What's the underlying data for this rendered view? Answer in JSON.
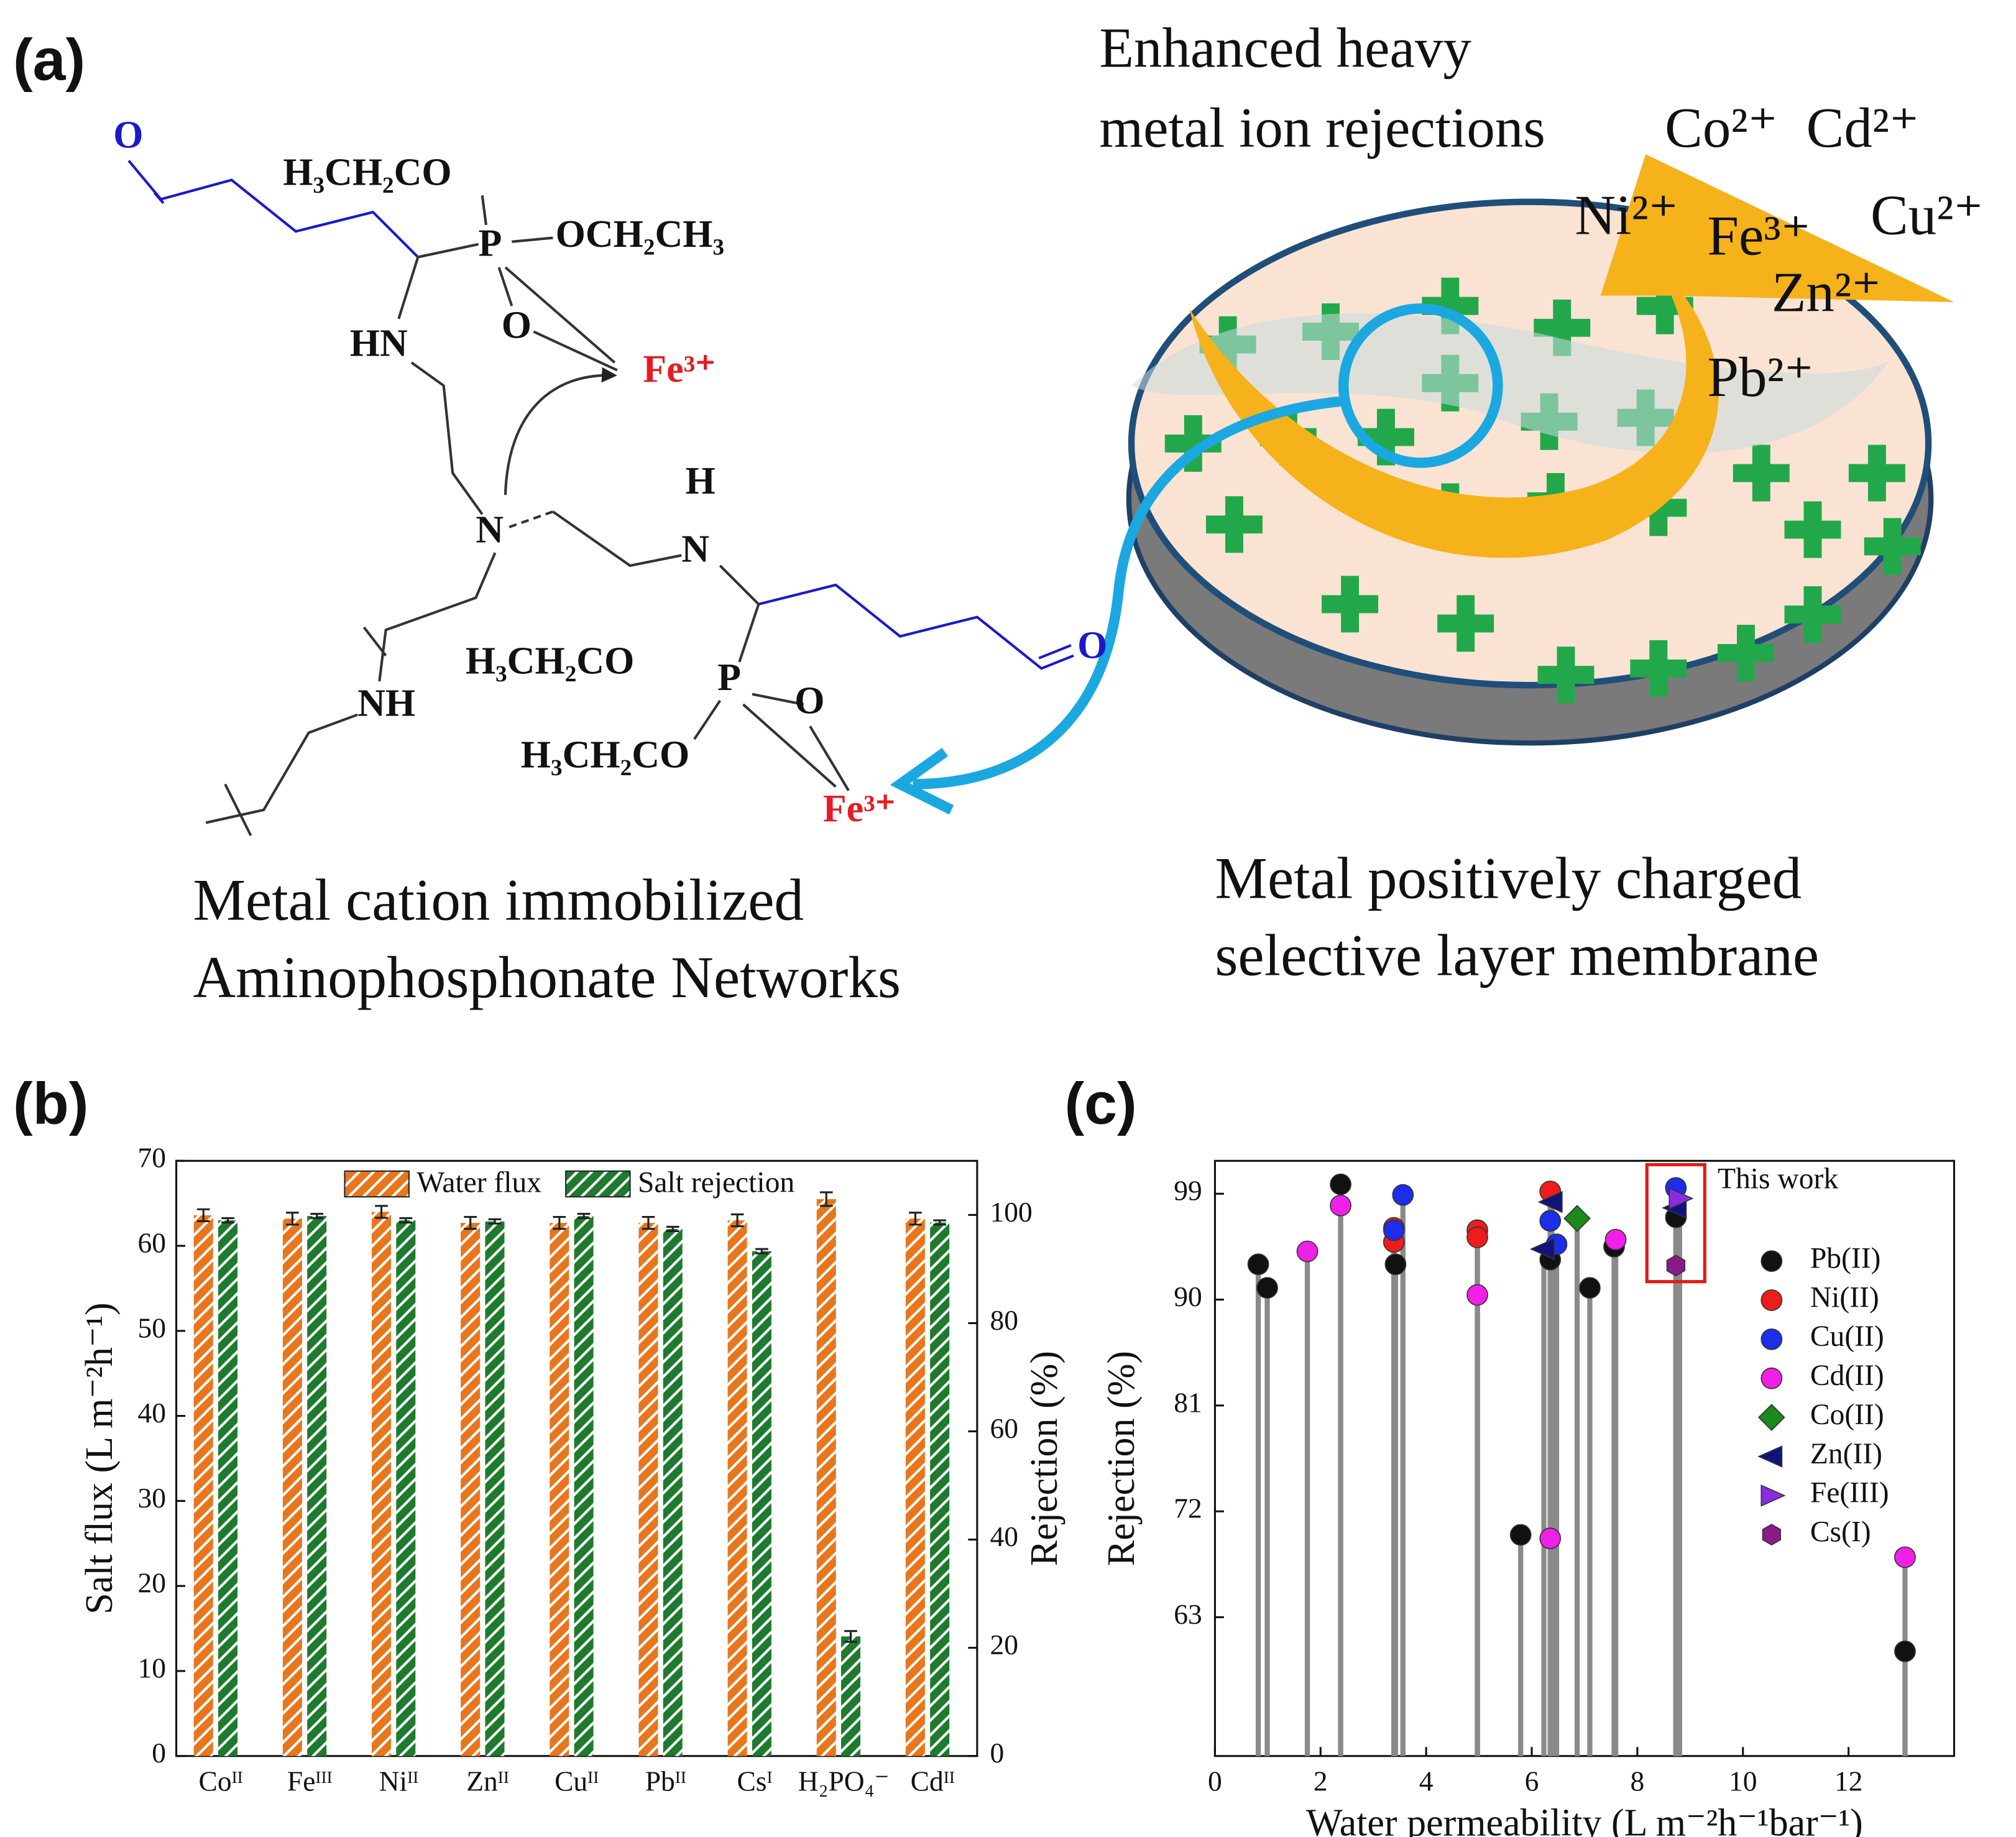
{
  "panel_labels": [
    "(a)",
    "(b)",
    "(c)"
  ],
  "panel_a": {
    "chemistry": [
      "O",
      "H₃CH₂CO",
      "OCH₂CH₃",
      "P",
      "O",
      "HN",
      "Fe³⁺",
      "H",
      "N",
      "N",
      "H₃CH₂CO",
      "P",
      "O",
      "NH",
      "H₃CH₂CO",
      "O",
      "Fe³⁺"
    ],
    "left_caption": [
      "Metal cation immobilized",
      "Aminophosphonate Networks"
    ],
    "right_title": [
      "Enhanced heavy",
      "metal ion rejections"
    ],
    "ions": [
      "Co²⁺",
      "Cd²⁺",
      "Ni²⁺",
      "Fe³⁺",
      "Cu²⁺",
      "Zn²⁺",
      "Pb²⁺"
    ],
    "right_caption": [
      "Metal positively charged",
      "selective layer membrane"
    ]
  },
  "chart_data": [
    {
      "type": "bar",
      "ylabel": "Salt flux (L m⁻²h⁻¹)",
      "y2label": "Rejection (%)",
      "categories": [
        "Coᴵᴵ",
        "Feᴵᴵᴵ",
        "Niᴵᴵ",
        "Znᴵᴵ",
        "Cuᴵᴵ",
        "Pbᴵᴵ",
        "Csᴵ",
        "H₂PO₄⁻",
        "Cdᴵᴵ"
      ],
      "series": [
        {
          "name": "Water flux",
          "color": "#e8761c",
          "values": [
            63.6,
            63.2,
            64.0,
            62.7,
            62.7,
            62.7,
            63.0,
            65.5,
            63.2
          ],
          "errors": [
            0.7,
            0.7,
            0.7,
            0.7,
            0.7,
            0.7,
            0.7,
            0.8,
            0.7
          ]
        },
        {
          "name": "Salt rejection",
          "color": "#1e7a2e",
          "axis": "y2",
          "values": [
            99.0,
            99.8,
            99.0,
            98.8,
            99.8,
            97.4,
            93.3,
            22.1,
            98.6
          ],
          "errors": [
            0.4,
            0.4,
            0.4,
            0.4,
            0.4,
            0.4,
            0.4,
            1.0,
            0.4
          ]
        }
      ],
      "ylim": [
        0,
        70
      ],
      "yticks": [
        0,
        10,
        20,
        30,
        40,
        50,
        60,
        70
      ],
      "y2lim": [
        0,
        110
      ],
      "y2ticks": [
        0,
        20,
        40,
        60,
        80,
        100
      ],
      "legend": "top",
      "hatch": true
    },
    {
      "type": "scatter",
      "xlabel": "Water permeability (L m⁻²h⁻¹bar⁻¹)",
      "ylabel": "Rejection (%)",
      "xlim": [
        0,
        14
      ],
      "xticks": [
        0,
        2,
        4,
        6,
        8,
        10,
        12
      ],
      "ylim": [
        51.2,
        101.8
      ],
      "yticks": [
        63,
        72,
        81,
        90,
        99
      ],
      "stems": true,
      "legend": "right",
      "annotation": "This work",
      "series": [
        {
          "name": "Pb(II)",
          "color": "#111111",
          "marker": "circle",
          "x": [
            0.82,
            0.99,
            2.38,
            3.42,
            5.79,
            6.35,
            7.1,
            7.56,
            8.73,
            13.07
          ],
          "values": [
            93.0,
            91.0,
            99.8,
            93.0,
            70.0,
            93.4,
            91.0,
            94.5,
            97.0,
            60.1
          ]
        },
        {
          "name": "Ni(II)",
          "color": "#ee1c1c",
          "marker": "circle",
          "x": [
            3.39,
            3.39,
            4.97,
            4.97,
            6.35
          ],
          "values": [
            96.1,
            94.9,
            95.9,
            95.3,
            99.2
          ]
        },
        {
          "name": "Cu(II)",
          "color": "#1c2ee8",
          "marker": "circle",
          "x": [
            3.56,
            3.39,
            6.35,
            6.47,
            8.73
          ],
          "values": [
            98.9,
            95.9,
            96.7,
            94.7,
            99.5
          ]
        },
        {
          "name": "Cd(II)",
          "color": "#f020e8",
          "marker": "circle",
          "x": [
            1.75,
            2.38,
            4.97,
            6.35,
            7.59,
            13.07
          ],
          "values": [
            94.1,
            98.0,
            90.4,
            69.7,
            95.1,
            68.1
          ]
        },
        {
          "name": "Co(II)",
          "color": "#1a8a1a",
          "marker": "diamond",
          "x": [
            6.86
          ],
          "values": [
            96.9
          ]
        },
        {
          "name": "Zn(II)",
          "color": "#12137a",
          "marker": "triangle-left",
          "x": [
            6.38,
            6.23,
            8.73
          ],
          "values": [
            98.3,
            94.3,
            97.8
          ]
        },
        {
          "name": "Fe(III)",
          "color": "#8a2be2",
          "marker": "triangle-right",
          "x": [
            8.8
          ],
          "values": [
            98.6
          ]
        },
        {
          "name": "Cs(I)",
          "color": "#8b1a89",
          "marker": "hexagon",
          "x": [
            8.73
          ],
          "values": [
            92.9
          ]
        }
      ]
    }
  ]
}
